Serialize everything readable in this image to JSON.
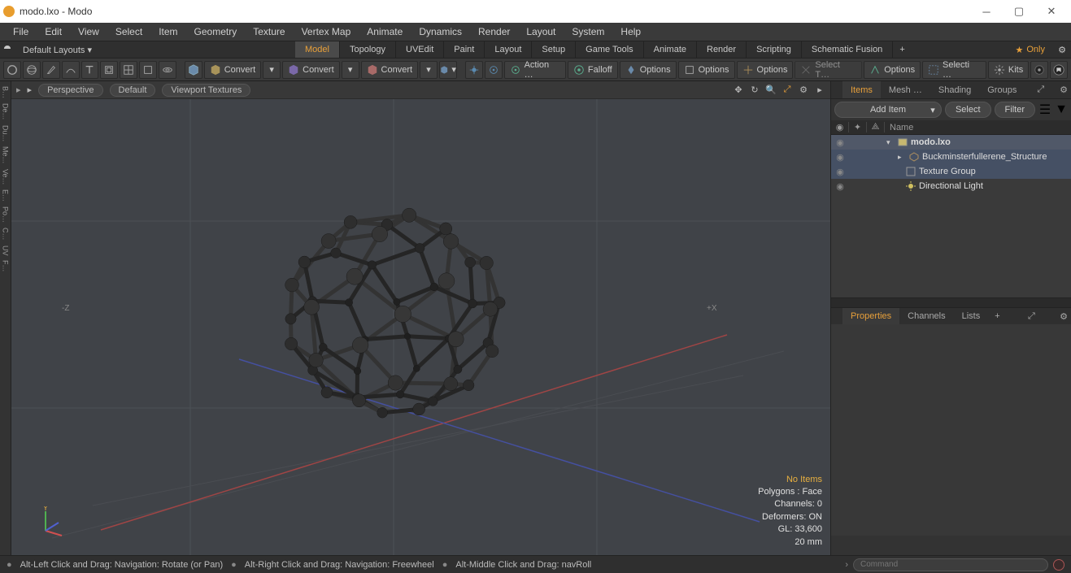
{
  "title": "modo.lxo - Modo",
  "menu": [
    "File",
    "Edit",
    "View",
    "Select",
    "Item",
    "Geometry",
    "Texture",
    "Vertex Map",
    "Animate",
    "Dynamics",
    "Render",
    "Layout",
    "System",
    "Help"
  ],
  "layoutDropdown": "Default Layouts ▾",
  "layoutTabs": [
    "Model",
    "Topology",
    "UVEdit",
    "Paint",
    "Layout",
    "Setup",
    "Game Tools",
    "Animate",
    "Render",
    "Scripting",
    "Schematic Fusion"
  ],
  "layoutActive": "Model",
  "only": "Only",
  "toolbar": {
    "convert": "Convert",
    "action": "Action  …",
    "falloff": "Falloff",
    "options": "Options",
    "selectT": "Select T…",
    "selecti": "Selecti …",
    "kits": "Kits"
  },
  "viewport": {
    "tabs": [
      "Perspective",
      "Default",
      "Viewport Textures"
    ],
    "info": {
      "noitems": "No Items",
      "polygons": "Polygons : Face",
      "channels": "Channels: 0",
      "deformers": "Deformers: ON",
      "gl": "GL: 33,600",
      "unit": "20 mm"
    },
    "axisX": "+X",
    "axisZ": "-Z",
    "yLabel": "Y"
  },
  "leftGutter": [
    "B…",
    "De…",
    "Du…",
    "Me…",
    "Ve…",
    "E…",
    "Po…",
    "C…",
    "UV",
    "F…"
  ],
  "rightTabs": [
    "Items",
    "Mesh …",
    "Shading",
    "Groups"
  ],
  "rightActive": "Items",
  "itemCtl": {
    "add": "Add Item",
    "select": "Select",
    "filter": "Filter"
  },
  "itemHeader": {
    "name": "Name"
  },
  "items": {
    "scene": "modo.lxo",
    "children": [
      "Buckminsterfullerene_Structure",
      "Texture Group",
      "Directional Light"
    ]
  },
  "propTabs": [
    "Properties",
    "Channels",
    "Lists"
  ],
  "propActive": "Properties",
  "status": {
    "left": "Alt-Left Click and Drag: Navigation: Rotate (or Pan)",
    "mid": "Alt-Right Click and Drag: Navigation: Freewheel",
    "right": "Alt-Middle Click and Drag: navRoll",
    "cmd": "Command"
  },
  "colors": {
    "accent": "#e8a03a",
    "axisX": "#d05050",
    "axisY": "#50b050",
    "axisZ": "#5060d0",
    "bg": "#404348"
  }
}
